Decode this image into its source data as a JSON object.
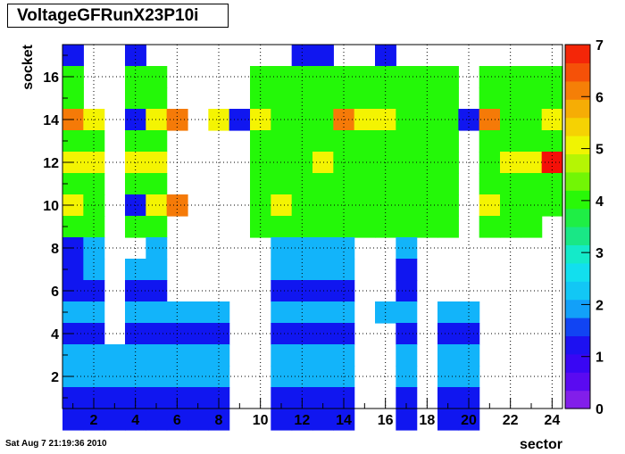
{
  "chart_data": {
    "type": "heatmap",
    "title": "VoltageGFRunX23P10i",
    "xlabel": "sector",
    "ylabel": "socket",
    "xlim": [
      0.5,
      24.5
    ],
    "ylim": [
      0.5,
      17.5
    ],
    "x_ticks": [
      2,
      4,
      6,
      8,
      10,
      12,
      14,
      16,
      18,
      20,
      22,
      24
    ],
    "y_ticks": [
      2,
      4,
      6,
      8,
      10,
      12,
      14,
      16
    ],
    "zlim": [
      0,
      7
    ],
    "z_ticks": [
      0,
      1,
      2,
      3,
      4,
      5,
      6,
      7
    ],
    "grid": true,
    "colorbar": "right",
    "values_rows_top_to_bottom": [
      "0100100000001100100000000",
      "0400440000444444444404444",
      "0400440000444444444404444",
      "0650156051544465544416445",
      "0440440000444444444404444",
      "0550550000444544444404557",
      "0440440000444444444404444",
      "0540156000454444444405444",
      "0440440000444444444404440",
      "0120020000022220020000000",
      "0120220000022220010000000",
      "0110110000011110010000000",
      "0220222220022220220220000",
      "0110111110011110010110000",
      "0222222220022220020220000",
      "0222222220022220020220000",
      "0111111110011110010110000",
      "0111111110011110010110000"
    ],
    "timestamp": "Sat Aug  7 21:19:36 2010"
  }
}
